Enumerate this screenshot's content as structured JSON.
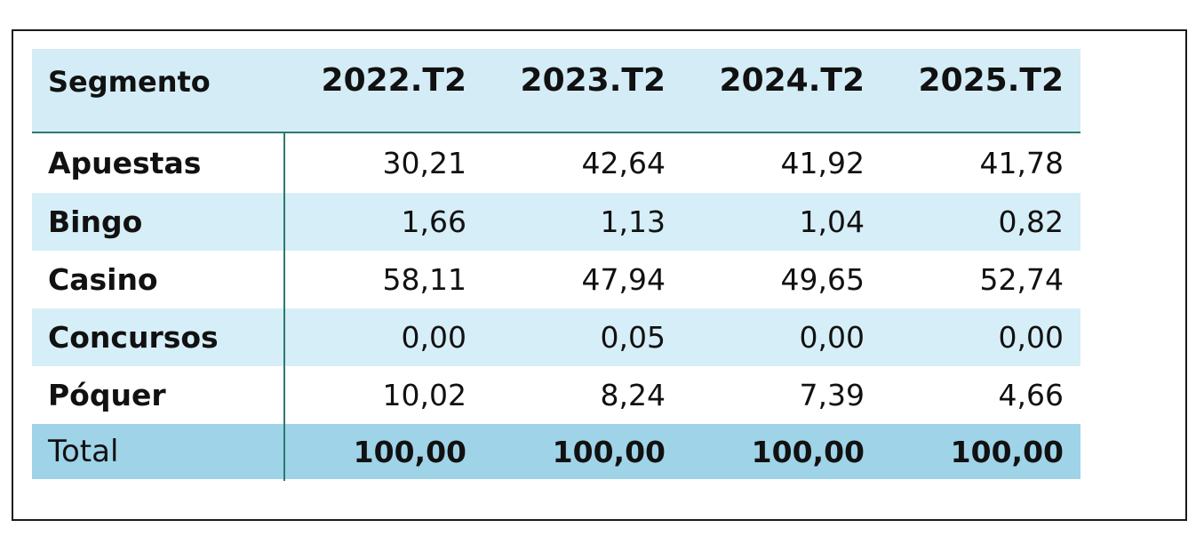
{
  "table": {
    "columns": [
      "Segmento",
      "2022.T2",
      "2023.T2",
      "2024.T2",
      "2025.T2"
    ],
    "rows": [
      {
        "segment": "Apuestas",
        "values": [
          "30,21",
          "42,64",
          "41,92",
          "41,78"
        ]
      },
      {
        "segment": "Bingo",
        "values": [
          "1,66",
          "1,13",
          "1,04",
          "0,82"
        ]
      },
      {
        "segment": "Casino",
        "values": [
          "58,11",
          "47,94",
          "49,65",
          "52,74"
        ]
      },
      {
        "segment": "Concursos",
        "values": [
          "0,00",
          "0,05",
          "0,00",
          "0,00"
        ]
      },
      {
        "segment": "Póquer",
        "values": [
          "10,02",
          "8,24",
          "7,39",
          "4,66"
        ]
      }
    ],
    "total": {
      "label": "Total",
      "values": [
        "100,00",
        "100,00",
        "100,00",
        "100,00"
      ]
    }
  },
  "colors": {
    "header_bg": "#d4ecf6",
    "stripe_bg": "#d6eef7",
    "total_bg": "#9fd3e8",
    "rule": "#2c7a6a"
  }
}
